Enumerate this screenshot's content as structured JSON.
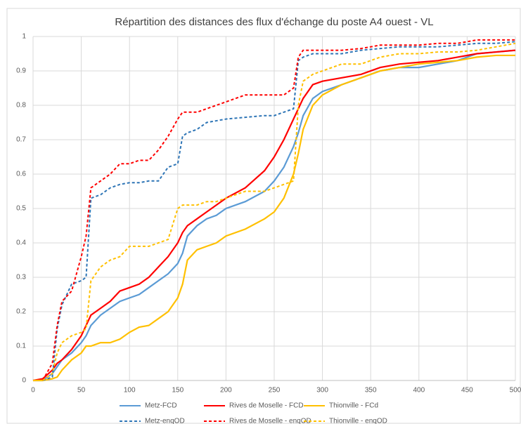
{
  "chart_data": {
    "type": "line",
    "title": "Répartition des distances des flux d'échange du poste A4 ouest - VL",
    "x": [
      0,
      10,
      20,
      25,
      30,
      40,
      50,
      55,
      60,
      70,
      80,
      90,
      100,
      110,
      120,
      130,
      140,
      150,
      155,
      160,
      170,
      180,
      190,
      200,
      220,
      240,
      250,
      260,
      270,
      275,
      280,
      290,
      300,
      320,
      340,
      360,
      380,
      400,
      420,
      440,
      460,
      480,
      500
    ],
    "series": [
      {
        "name": "Metz-FCD",
        "color": "#5b9bd5",
        "dashed": false,
        "values": [
          0,
          0,
          0.02,
          0.04,
          0.06,
          0.08,
          0.11,
          0.13,
          0.16,
          0.19,
          0.21,
          0.23,
          0.24,
          0.25,
          0.27,
          0.29,
          0.31,
          0.34,
          0.37,
          0.42,
          0.45,
          0.47,
          0.48,
          0.5,
          0.52,
          0.55,
          0.58,
          0.62,
          0.68,
          0.72,
          0.77,
          0.82,
          0.84,
          0.86,
          0.88,
          0.9,
          0.91,
          0.91,
          0.92,
          0.93,
          0.95,
          0.955,
          0.96
        ]
      },
      {
        "name": "Rives de Moselle - FCD",
        "color": "#ff0000",
        "dashed": false,
        "values": [
          0,
          0.005,
          0.03,
          0.05,
          0.06,
          0.09,
          0.13,
          0.16,
          0.19,
          0.21,
          0.23,
          0.26,
          0.27,
          0.28,
          0.3,
          0.33,
          0.36,
          0.4,
          0.43,
          0.45,
          0.47,
          0.49,
          0.51,
          0.53,
          0.56,
          0.61,
          0.65,
          0.7,
          0.76,
          0.79,
          0.82,
          0.86,
          0.87,
          0.88,
          0.89,
          0.91,
          0.92,
          0.925,
          0.93,
          0.94,
          0.95,
          0.955,
          0.96
        ]
      },
      {
        "name": "Thionville - FCd",
        "color": "#ffc000",
        "dashed": false,
        "values": [
          0,
          0,
          0.005,
          0.01,
          0.03,
          0.06,
          0.08,
          0.1,
          0.1,
          0.11,
          0.11,
          0.12,
          0.14,
          0.155,
          0.16,
          0.18,
          0.2,
          0.24,
          0.28,
          0.35,
          0.38,
          0.39,
          0.4,
          0.42,
          0.44,
          0.47,
          0.49,
          0.53,
          0.6,
          0.66,
          0.73,
          0.8,
          0.83,
          0.86,
          0.88,
          0.9,
          0.91,
          0.92,
          0.925,
          0.93,
          0.94,
          0.945,
          0.945
        ]
      },
      {
        "name": "Metz-enqOD",
        "color": "#2e75b6",
        "dashed": true,
        "values": [
          0,
          0,
          0.01,
          0.15,
          0.22,
          0.28,
          0.29,
          0.3,
          0.53,
          0.54,
          0.56,
          0.57,
          0.575,
          0.575,
          0.58,
          0.58,
          0.62,
          0.63,
          0.71,
          0.72,
          0.73,
          0.75,
          0.755,
          0.76,
          0.765,
          0.77,
          0.77,
          0.78,
          0.79,
          0.93,
          0.94,
          0.95,
          0.95,
          0.95,
          0.96,
          0.965,
          0.97,
          0.97,
          0.97,
          0.975,
          0.98,
          0.98,
          0.985
        ]
      },
      {
        "name": "Rives de Moselle - enqOD",
        "color": "#ff0000",
        "dashed": true,
        "values": [
          0,
          0,
          0.05,
          0.16,
          0.23,
          0.26,
          0.36,
          0.42,
          0.56,
          0.58,
          0.6,
          0.63,
          0.63,
          0.64,
          0.64,
          0.67,
          0.71,
          0.76,
          0.78,
          0.78,
          0.78,
          0.79,
          0.8,
          0.81,
          0.83,
          0.83,
          0.83,
          0.83,
          0.85,
          0.94,
          0.96,
          0.96,
          0.96,
          0.96,
          0.965,
          0.975,
          0.975,
          0.975,
          0.98,
          0.98,
          0.99,
          0.99,
          0.99
        ]
      },
      {
        "name": "Thionville - enqOD",
        "color": "#ffc000",
        "dashed": true,
        "values": [
          0,
          0,
          0.02,
          0.08,
          0.11,
          0.13,
          0.14,
          0.15,
          0.29,
          0.33,
          0.35,
          0.36,
          0.39,
          0.39,
          0.39,
          0.4,
          0.41,
          0.5,
          0.51,
          0.51,
          0.51,
          0.52,
          0.52,
          0.53,
          0.55,
          0.55,
          0.56,
          0.57,
          0.58,
          0.8,
          0.87,
          0.89,
          0.9,
          0.92,
          0.92,
          0.94,
          0.95,
          0.95,
          0.955,
          0.955,
          0.96,
          0.97,
          0.98
        ]
      }
    ],
    "xlim": [
      0,
      500
    ],
    "xticks": [
      0,
      50,
      100,
      150,
      200,
      250,
      300,
      350,
      400,
      450,
      500
    ],
    "ylim": [
      0,
      1
    ],
    "yticks": [
      0,
      0.1,
      0.2,
      0.3,
      0.4,
      0.5,
      0.6,
      0.7,
      0.8,
      0.9,
      1
    ],
    "grid": true,
    "legend": "bottom"
  }
}
